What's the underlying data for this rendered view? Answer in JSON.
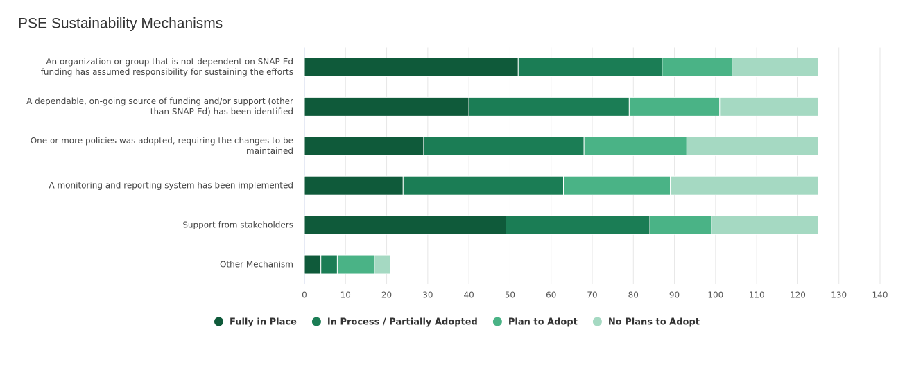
{
  "chart_data": {
    "type": "stacked-bar-horizontal",
    "title": "PSE Sustainability Mechanisms",
    "categories": [
      "An organization or group that is not dependent on SNAP-Ed funding has assumed responsibility for sustaining the efforts",
      "A dependable, on-going source of funding and/or support (other than SNAP-Ed) has been identified",
      "One or more policies was adopted, requiring the changes to be maintained",
      "A monitoring and reporting system has been implemented",
      "Support from stakeholders",
      "Other Mechanism"
    ],
    "series": [
      {
        "name": "Fully in Place",
        "color": "#0f5a3a",
        "values": [
          52,
          40,
          29,
          24,
          49,
          4
        ]
      },
      {
        "name": "In Process / Partially Adopted",
        "color": "#1b7d55",
        "values": [
          35,
          39,
          39,
          39,
          35,
          4
        ]
      },
      {
        "name": "Plan to Adopt",
        "color": "#4ab386",
        "values": [
          17,
          22,
          25,
          26,
          15,
          9
        ]
      },
      {
        "name": "No Plans to Adopt",
        "color": "#a5d9c2",
        "values": [
          21,
          24,
          32,
          36,
          26,
          4
        ]
      }
    ],
    "xlim": [
      0,
      140
    ],
    "xticks": [
      0,
      10,
      20,
      30,
      40,
      50,
      60,
      70,
      80,
      90,
      100,
      110,
      120,
      130,
      140
    ],
    "grid": true
  }
}
